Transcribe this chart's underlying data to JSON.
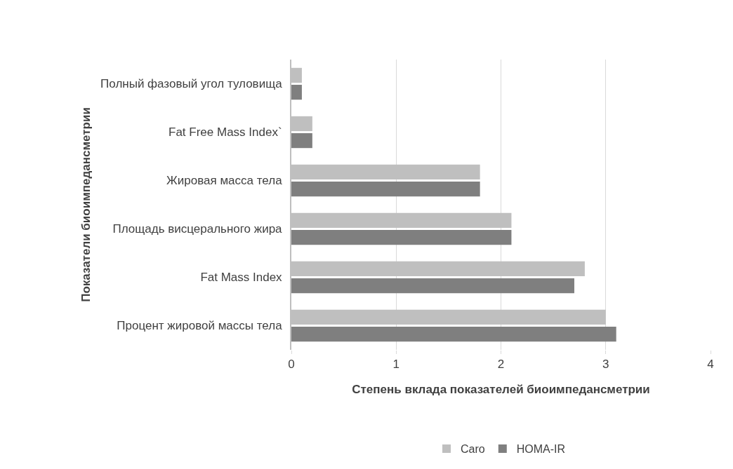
{
  "chart_data": {
    "type": "bar",
    "orientation": "horizontal",
    "xlabel": "Степень вклада показателей биоимпедансметрии",
    "ylabel": "Показатели биоимпедансметрии",
    "categories": [
      "Полный фазовый угол туловища",
      "Fat Free Mass Index`",
      "Жировая масса тела",
      "Площадь висцерального жира",
      "Fat Mass Index",
      "Процент жировой массы тела"
    ],
    "series": [
      {
        "name": "Caro",
        "color": "#bfbfbf",
        "values": [
          0.1,
          0.2,
          1.8,
          2.1,
          2.8,
          3.0
        ]
      },
      {
        "name": "HOMA-IR",
        "color": "#7f7f7f",
        "values": [
          0.1,
          0.2,
          1.8,
          2.1,
          2.7,
          3.1
        ]
      }
    ],
    "xlim": [
      0,
      4
    ],
    "xticks": [
      0,
      1,
      2,
      3,
      4
    ],
    "grid": "x",
    "legend": "bottom"
  }
}
